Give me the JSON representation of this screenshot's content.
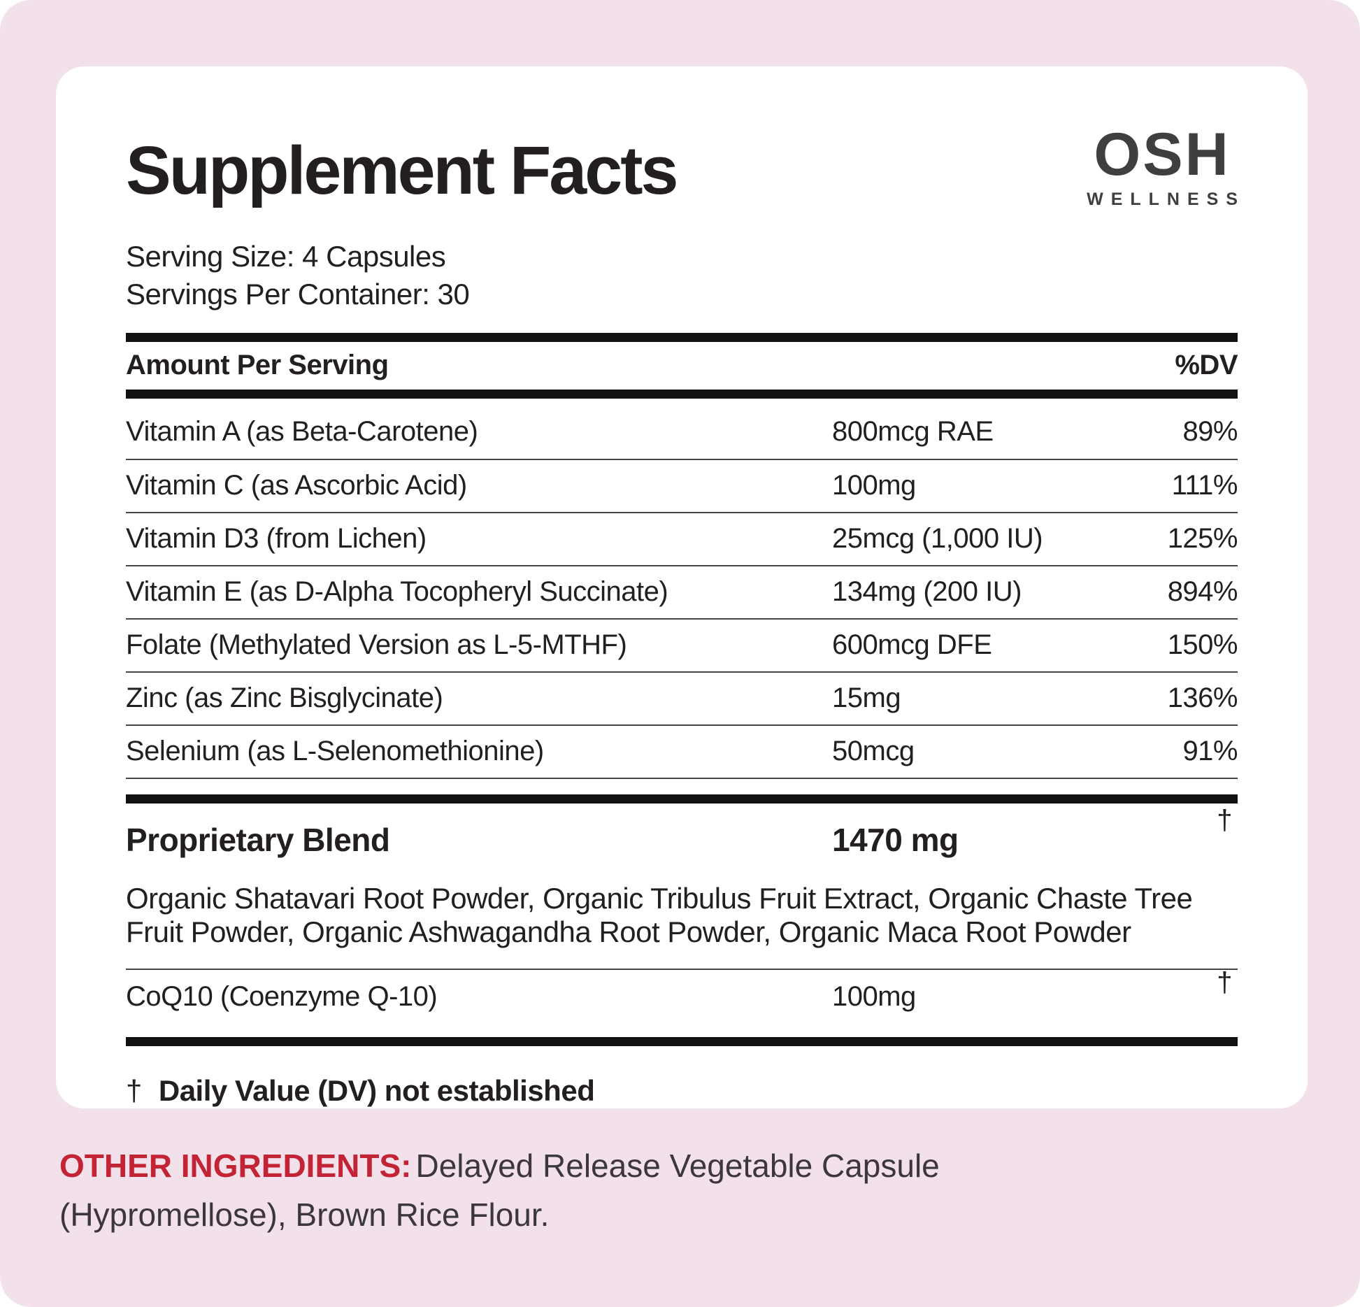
{
  "brand": {
    "name": "OSH",
    "tagline": "WELLNESS",
    "color": "#3F3F40"
  },
  "header": {
    "title": "Supplement Facts",
    "serving_size": "Serving Size: 4 Capsules",
    "servings_per_container": "Servings Per Container: 30"
  },
  "table": {
    "header": {
      "amount_label": "Amount Per Serving",
      "dv_label": "%DV"
    },
    "rows": [
      {
        "name": "Vitamin A (as Beta-Carotene)",
        "amount": "800mcg RAE",
        "dv": "89%"
      },
      {
        "name": "Vitamin C (as Ascorbic Acid)",
        "amount": "100mg",
        "dv": "111%"
      },
      {
        "name": "Vitamin D3 (from Lichen)",
        "amount": "25mcg (1,000 IU)",
        "dv": "125%"
      },
      {
        "name": "Vitamin E (as D-Alpha Tocopheryl Succinate)",
        "amount": "134mg (200 IU)",
        "dv": "894%"
      },
      {
        "name": "Folate (Methylated Version as L-5-MTHF)",
        "amount": "600mcg DFE",
        "dv": "150%"
      },
      {
        "name": "Zinc (as Zinc Bisglycinate)",
        "amount": "15mg",
        "dv": "136%"
      },
      {
        "name": "Selenium (as L-Selenomethionine)",
        "amount": "50mcg",
        "dv": "91%"
      }
    ],
    "blend": {
      "name": "Proprietary Blend",
      "amount": "1470 mg",
      "dv_symbol": "†",
      "ingredients": "Organic Shatavari Root Powder, Organic Tribulus Fruit Extract, Organic Chaste Tree Fruit Powder, Organic Ashwagandha Root Powder, Organic Maca Root Powder"
    },
    "coq10": {
      "name": "CoQ10 (Coenzyme Q-10)",
      "amount": "100mg",
      "dv_symbol": "†"
    },
    "footnote": {
      "symbol": "†",
      "text": "Daily Value (DV) not established"
    }
  },
  "other_ingredients": {
    "label": "OTHER INGREDIENTS:",
    "text": "Delayed Release Vegetable Capsule (Hypromellose), Brown Rice Flour.",
    "label_color": "#C22335",
    "text_color": "#3B373C"
  },
  "colors": {
    "page_background": "#F2E1EA",
    "card_background": "#FFFFFF",
    "bar_color": "#111111",
    "text_color": "#231F20"
  }
}
